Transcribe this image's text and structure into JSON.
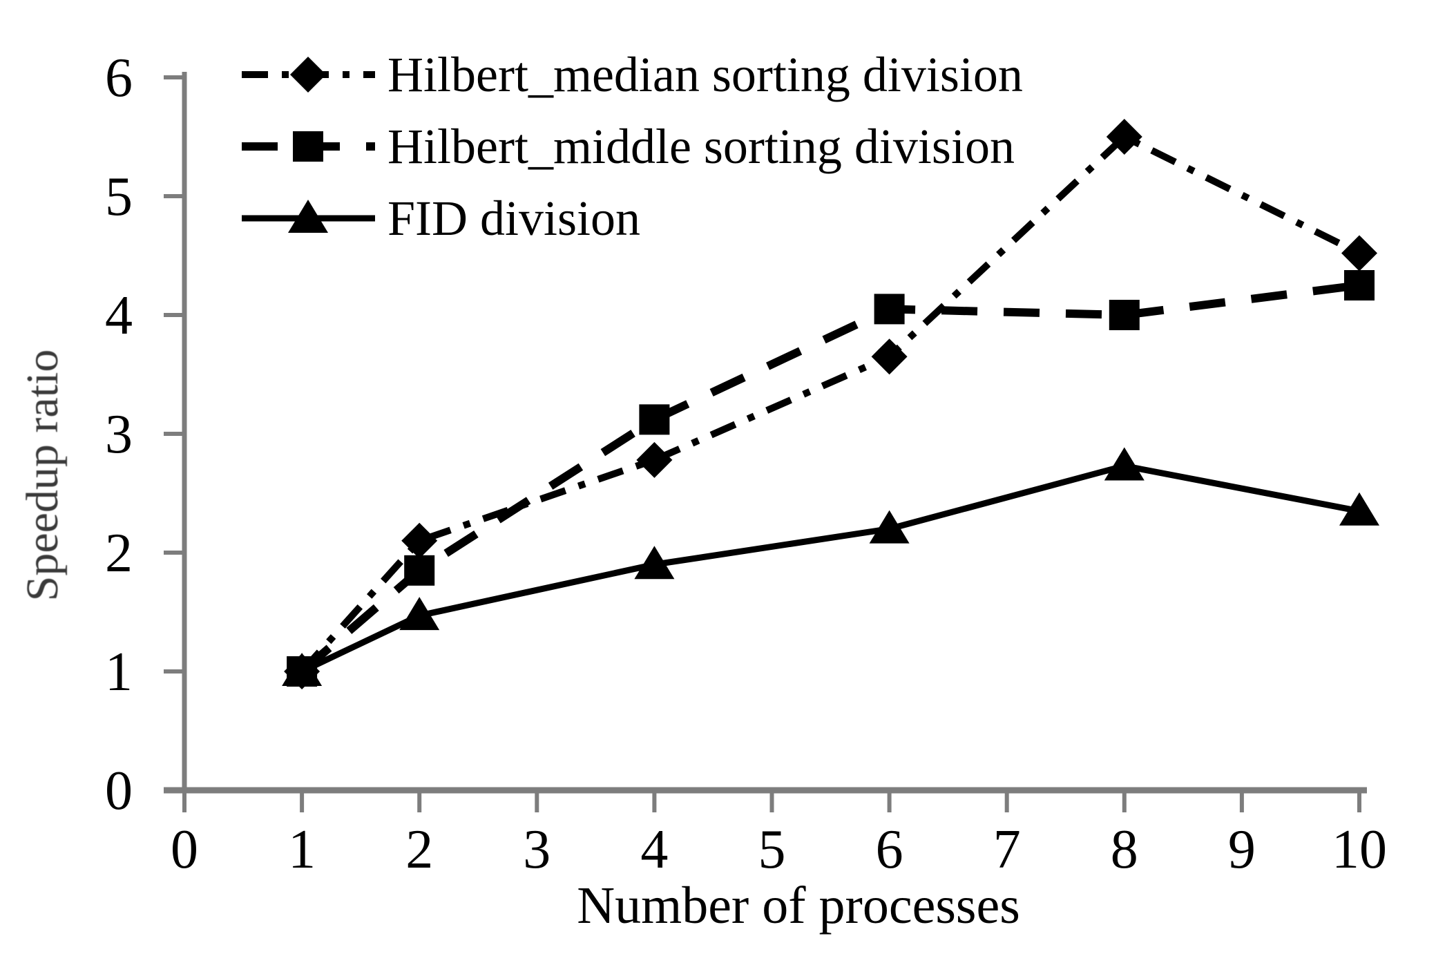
{
  "chart_data": {
    "type": "line",
    "title": "",
    "xlabel": "Number of processes",
    "ylabel": "Speedup ratio",
    "x": [
      1,
      2,
      4,
      6,
      8,
      10
    ],
    "xlim": [
      0,
      10
    ],
    "ylim": [
      0,
      6
    ],
    "x_ticks": [
      0,
      1,
      2,
      3,
      4,
      5,
      6,
      7,
      8,
      9,
      10
    ],
    "y_ticks": [
      0,
      1,
      2,
      3,
      4,
      5,
      6
    ],
    "grid": false,
    "legend_position": "top-left",
    "series": [
      {
        "name": "Hilbert_median sorting division",
        "marker": "diamond",
        "line_style": "dash-dot",
        "color": "#000000",
        "values": [
          1.0,
          2.1,
          2.78,
          3.65,
          5.5,
          4.52
        ]
      },
      {
        "name": "Hilbert_middle sorting division",
        "marker": "square",
        "line_style": "dashed",
        "color": "#000000",
        "values": [
          1.0,
          1.85,
          3.12,
          4.05,
          4.0,
          4.25
        ]
      },
      {
        "name": "FID division",
        "marker": "triangle",
        "line_style": "solid",
        "color": "#000000",
        "values": [
          1.0,
          1.47,
          1.9,
          2.2,
          2.73,
          2.35
        ]
      }
    ],
    "axis_color": "#7d7d7d",
    "text_color": "#000000",
    "ylabel_color": "#3a3a3a"
  }
}
